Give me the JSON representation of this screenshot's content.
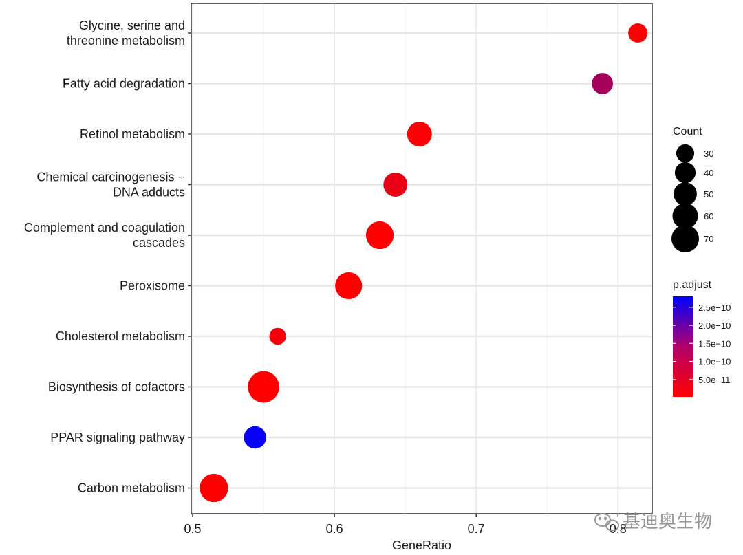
{
  "chart_data": {
    "type": "scatter",
    "title": "",
    "xlabel": "GeneRatio",
    "ylabel": "",
    "xlim": [
      0.5,
      0.825
    ],
    "xticks": [
      0.5,
      0.6,
      0.7,
      0.8
    ],
    "xtick_labels": [
      "0.5",
      "0.6",
      "0.7",
      "0.8"
    ],
    "grid": true,
    "points": [
      {
        "term": "Glycine, serine and threonine metabolism",
        "lines": [
          "Glycine, serine and",
          "threonine metabolism"
        ],
        "generatio": 0.814,
        "count": 29,
        "p_adjust": 2e-12
      },
      {
        "term": "Fatty acid degradation",
        "lines": [
          "Fatty acid degradation"
        ],
        "generatio": 0.789,
        "count": 35,
        "p_adjust": 1e-10
      },
      {
        "term": "Retinol metabolism",
        "lines": [
          "Retinol metabolism"
        ],
        "generatio": 0.66,
        "count": 48,
        "p_adjust": 6e-12
      },
      {
        "term": "Chemical carcinogenesis - DNA adducts",
        "lines": [
          "Chemical carcinogenesis −",
          "DNA adducts"
        ],
        "generatio": 0.643,
        "count": 45,
        "p_adjust": 2.5e-11
      },
      {
        "term": "Complement and coagulation cascades",
        "lines": [
          "Complement and coagulation",
          "cascades"
        ],
        "generatio": 0.632,
        "count": 60,
        "p_adjust": 2e-12
      },
      {
        "term": "Peroxisome",
        "lines": [
          "Peroxisome"
        ],
        "generatio": 0.61,
        "count": 57,
        "p_adjust": 2e-12
      },
      {
        "term": "Cholesterol metabolism",
        "lines": [
          "Cholesterol metabolism"
        ],
        "generatio": 0.56,
        "count": 22,
        "p_adjust": 1.5e-11
      },
      {
        "term": "Biosynthesis of cofactors",
        "lines": [
          "Biosynthesis of cofactors"
        ],
        "generatio": 0.55,
        "count": 77,
        "p_adjust": 2e-12
      },
      {
        "term": "PPAR signaling pathway",
        "lines": [
          "PPAR signaling pathway"
        ],
        "generatio": 0.544,
        "count": 39,
        "p_adjust": 2.7e-10
      },
      {
        "term": "Carbon metabolism",
        "lines": [
          "Carbon metabolism"
        ],
        "generatio": 0.515,
        "count": 63,
        "p_adjust": 2e-12
      }
    ],
    "legend_count": {
      "title": "Count",
      "values": [
        30,
        40,
        50,
        60,
        70
      ],
      "labels": [
        "30",
        "40",
        "50",
        "60",
        "70"
      ]
    },
    "legend_padjust": {
      "title": "p.adjust",
      "min": 2e-12,
      "max": 2.8e-10,
      "ticks": [
        5e-11,
        1e-10,
        1.5e-10,
        2e-10,
        2.5e-10
      ],
      "tick_labels": [
        "5.0e−11",
        "1.0e−10",
        "1.5e−10",
        "2.0e−10",
        "2.5e−10"
      ],
      "color_low": "#ff0000",
      "color_high": "#0000ff"
    }
  },
  "watermark": {
    "text": "基迪奥生物",
    "icon": "wechat-icon"
  }
}
